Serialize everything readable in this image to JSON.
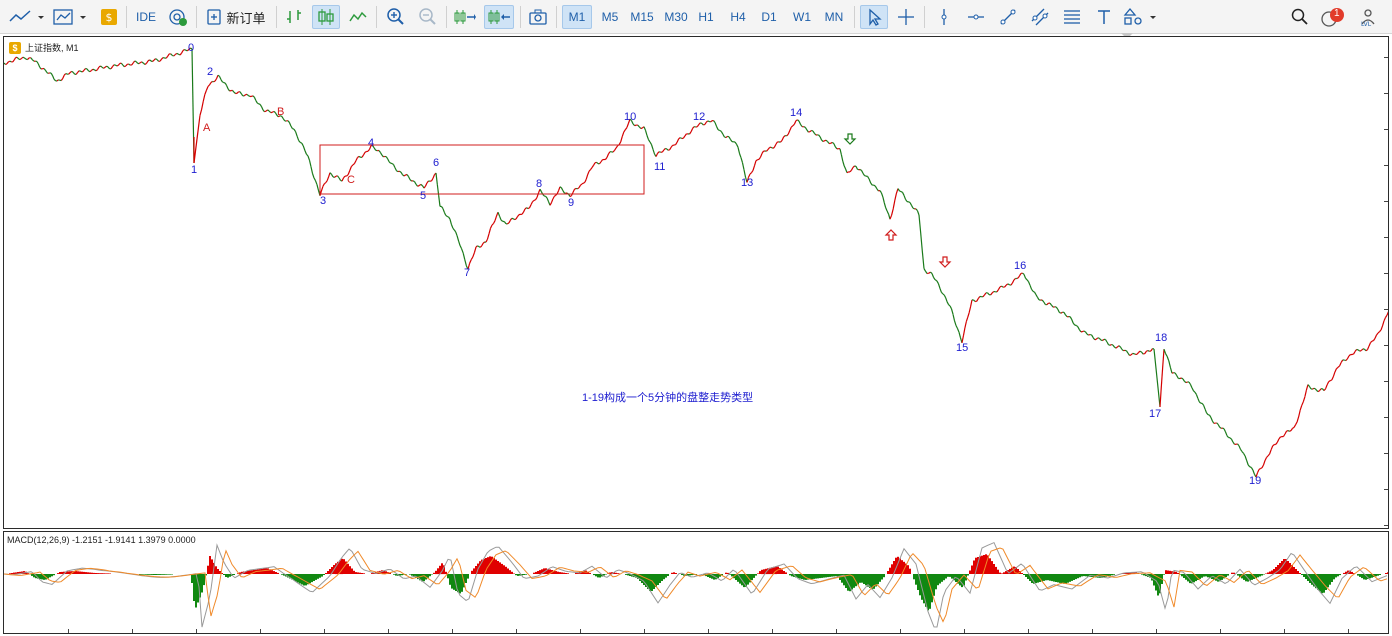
{
  "toolbar": {
    "ide_label": "IDE",
    "new_order_label": "新订单",
    "timeframes": [
      "M1",
      "M5",
      "M15",
      "M30",
      "H1",
      "H4",
      "D1",
      "W1",
      "MN"
    ],
    "active_timeframe": "M1",
    "notification_count": "1"
  },
  "chart": {
    "symbol_label": "上证指数, M1",
    "note": "1-19构成一个5分钟的盘整走势类型",
    "wave_labels": [
      "0",
      "1",
      "2",
      "A",
      "B",
      "3",
      "C",
      "4",
      "5",
      "6",
      "7",
      "8",
      "9",
      "10",
      "11",
      "12",
      "13",
      "14",
      "15",
      "16",
      "17",
      "18",
      "19"
    ],
    "colors": {
      "up": "#d40000",
      "down": "#1a7a1a",
      "box": "#d01c1c",
      "label_blue": "#2020d0",
      "label_red": "#d01c1c"
    }
  },
  "macd": {
    "label": "MACD(12,26,9) -1.2151 -1.9141 1.3979 0.0000",
    "colors": {
      "positive": "#e00000",
      "negative": "#118811",
      "signal": "#f08a2a",
      "main": "#999999"
    }
  }
}
